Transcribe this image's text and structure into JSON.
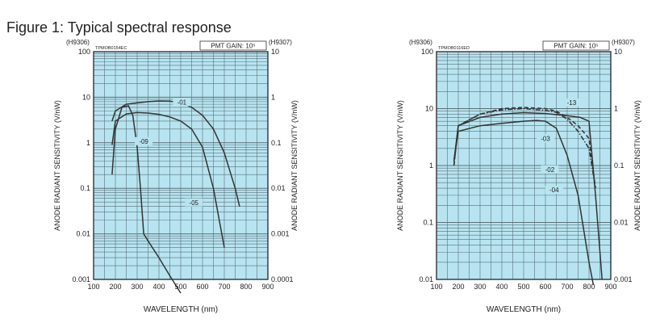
{
  "figure": {
    "title": "Figure 1: Typical spectral response"
  },
  "colors": {
    "plot_bg": "#b7e4f0",
    "grid": "#5a6f78",
    "curve": "#333333",
    "frame": "#333333"
  },
  "chart_data": [
    {
      "type": "line",
      "code": "TPMOB0154EC",
      "gain_label": "PMT GAIN: 10⁵",
      "left_model": "(H9306)",
      "right_model": "(H9307)",
      "xlabel": "WAVELENGTH (nm)",
      "ylabel_left": "ANODE RADIANT SENSITIVITY (V/nW)",
      "ylabel_right": "ANODE RADIANT SENSITIVITY (V/nW)",
      "xlim": [
        100,
        900
      ],
      "ylim": [
        0.001,
        100
      ],
      "y_scale": "log",
      "x_ticks": [
        "100",
        "200",
        "300",
        "400",
        "500",
        "600",
        "700",
        "800",
        "900"
      ],
      "y_ticks_left": [
        "0.001",
        "0.01",
        "0.1",
        "1",
        "10",
        "100"
      ],
      "y_ticks_right": [
        "0.0001",
        "0.001",
        "0.01",
        "0.1",
        "1",
        "10"
      ],
      "series": [
        {
          "name": "-01",
          "dash": "solid",
          "label_at": [
            505,
            7.2
          ],
          "x": [
            185,
            200,
            250,
            300,
            350,
            400,
            450,
            500,
            550,
            600,
            650,
            700,
            750,
            770
          ],
          "y": [
            3,
            5,
            7,
            7.5,
            8,
            8.3,
            8.2,
            7.5,
            6,
            4,
            2,
            0.6,
            0.1,
            0.04
          ]
        },
        {
          "name": "-09",
          "dash": "solid",
          "label_at": [
            330,
            1.0
          ],
          "x": [
            185,
            200,
            230,
            260,
            280,
            300,
            315,
            330,
            350,
            400,
            450,
            500
          ],
          "y": [
            0.2,
            2,
            6,
            6.5,
            4,
            0.8,
            0.1,
            0.01,
            0.007,
            0.003,
            0.0012,
            0.0005
          ]
        },
        {
          "name": "-05",
          "dash": "solid",
          "label_at": [
            560,
            0.045
          ],
          "x": [
            185,
            200,
            250,
            300,
            350,
            400,
            450,
            500,
            550,
            600,
            650,
            700
          ],
          "y": [
            0.9,
            3,
            4.3,
            4.6,
            4.5,
            4.2,
            3.7,
            3,
            2,
            0.8,
            0.1,
            0.005
          ]
        }
      ]
    },
    {
      "type": "line",
      "code": "TPMOB0116ED",
      "gain_label": "PMT GAIN: 10⁵",
      "left_model": "(H9306)",
      "right_model": "(H9307)",
      "xlabel": "WAVELENGTH (nm)",
      "ylabel_left": "ANODE RADIANT SENSITIVITY (V/nW)",
      "ylabel_right": "ANODE RADIANT SENSITIVITY (V/nW)",
      "xlim": [
        100,
        900
      ],
      "ylim": [
        0.01,
        100
      ],
      "y_scale": "log",
      "x_ticks": [
        "100",
        "200",
        "300",
        "400",
        "500",
        "600",
        "700",
        "800",
        "900"
      ],
      "y_ticks_left": [
        "0.01",
        "0.1",
        "1",
        "10",
        "100"
      ],
      "y_ticks_right": [
        "0.001",
        "0.01",
        "0.1",
        "1",
        "10"
      ],
      "series": [
        {
          "name": "-13",
          "dash": "dashed",
          "label_at": [
            720,
            12
          ],
          "x": [
            180,
            200,
            300,
            400,
            500,
            600,
            650,
            700,
            750,
            800,
            830
          ],
          "y": [
            1,
            5,
            8,
            10,
            10.5,
            10,
            9,
            7,
            5,
            3,
            0.4
          ]
        },
        {
          "name": "-03",
          "dash": "dashdot",
          "label_at": [
            600,
            2.8
          ],
          "x": [
            180,
            200,
            300,
            400,
            500,
            600,
            650,
            700,
            750,
            800,
            830
          ],
          "y": [
            1,
            5,
            8,
            9.5,
            10,
            9.3,
            8.6,
            6.5,
            4,
            2,
            0.4
          ]
        },
        {
          "name": "-02",
          "dash": "solid",
          "label_at": [
            620,
            0.8
          ],
          "x": [
            180,
            200,
            300,
            400,
            500,
            600,
            700,
            760,
            800,
            830,
            860
          ],
          "y": [
            1.2,
            5,
            7,
            8,
            8.5,
            8.2,
            7.5,
            7,
            6,
            0.3,
            0.01
          ]
        },
        {
          "name": "-04",
          "dash": "solid",
          "label_at": [
            640,
            0.35
          ],
          "x": [
            180,
            200,
            300,
            400,
            500,
            560,
            600,
            650,
            700,
            750,
            800,
            820
          ],
          "y": [
            1.2,
            4,
            5,
            5.5,
            6,
            6.2,
            6,
            4.5,
            1.5,
            0.3,
            0.02,
            0.008
          ]
        }
      ]
    }
  ]
}
